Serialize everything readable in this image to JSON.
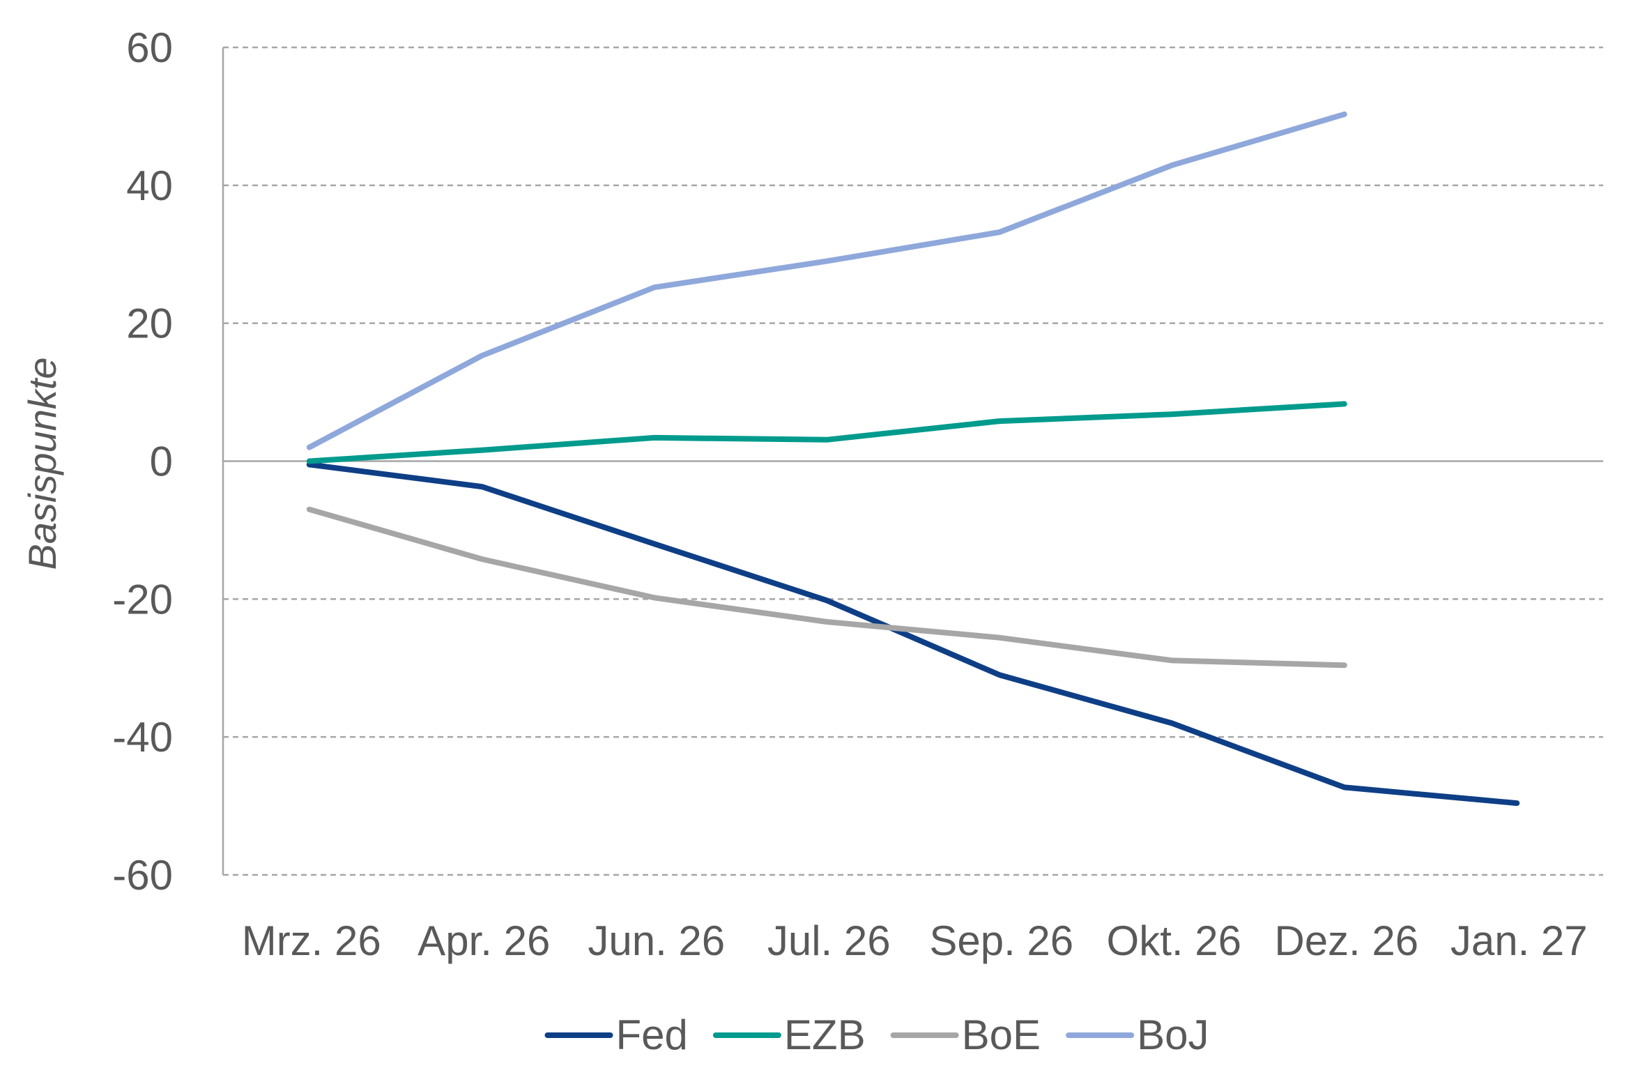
{
  "chart_data": {
    "type": "line",
    "title": "",
    "xlabel": "",
    "ylabel": "Basispunkte",
    "ylim": [
      -60,
      60
    ],
    "yticks": [
      60,
      40,
      20,
      0,
      -20,
      -40,
      -60
    ],
    "yticks_labels": [
      "60",
      "40",
      "20",
      "0",
      "-20",
      "-40",
      "-60"
    ],
    "grid": "horizontal-dashed",
    "legend_position": "bottom",
    "categories": [
      "Mrz. 26",
      "Apr. 26",
      "Jun. 26",
      "Jul. 26",
      "Sep. 26",
      "Okt. 26",
      "Dez. 26",
      "Jan. 27"
    ],
    "series": [
      {
        "name": "Fed",
        "color": "#0E3F86",
        "values": [
          -0.5,
          -3.7,
          -12,
          -20.2,
          -31,
          -38,
          -47.3,
          -49.6
        ]
      },
      {
        "name": "EZB",
        "color": "#009B8D",
        "values": [
          0,
          1.6,
          3.4,
          3.1,
          5.8,
          6.8,
          8.3,
          null
        ]
      },
      {
        "name": "BoE",
        "color": "#A6A6A6",
        "values": [
          -7,
          -14.2,
          -19.8,
          -23.3,
          -25.6,
          -28.9,
          -29.6,
          null
        ]
      },
      {
        "name": "BoJ",
        "color": "#8FA8DB",
        "values": [
          2,
          15.3,
          25.2,
          29,
          33.2,
          42.9,
          50.3,
          null
        ]
      }
    ]
  }
}
